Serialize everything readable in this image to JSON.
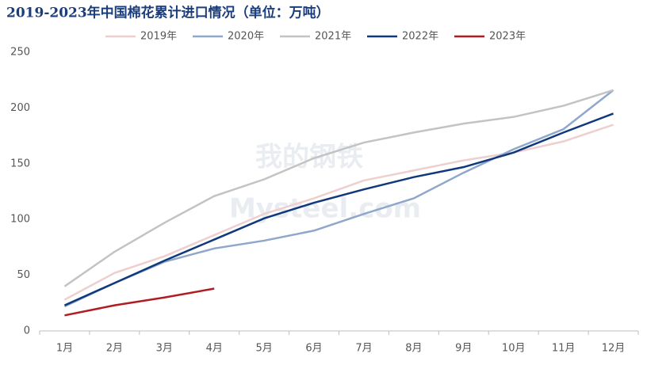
{
  "chart_data": {
    "type": "line",
    "title": "2019-2023年中国棉花累计进口情况（单位：万吨）",
    "watermark": [
      "我的钢铁",
      "Mysteel.com"
    ],
    "categories": [
      "1月",
      "2月",
      "3月",
      "4月",
      "5月",
      "6月",
      "7月",
      "8月",
      "9月",
      "10月",
      "11月",
      "12月"
    ],
    "series": [
      {
        "name": "2019年",
        "color": "#edcfd0",
        "values": [
          28,
          52,
          67,
          86,
          105,
          119,
          135,
          144,
          153,
          160,
          170,
          185
        ]
      },
      {
        "name": "2020年",
        "color": "#8ea7cb",
        "values": [
          22,
          43,
          62,
          74,
          81,
          90,
          105,
          119,
          142,
          163,
          181,
          216
        ]
      },
      {
        "name": "2021年",
        "color": "#c3c3c3",
        "values": [
          40,
          71,
          97,
          121,
          136,
          155,
          169,
          178,
          186,
          192,
          202,
          216
        ]
      },
      {
        "name": "2022年",
        "color": "#0f397b",
        "values": [
          23,
          43,
          63,
          82,
          101,
          115,
          127,
          138,
          147,
          160,
          178,
          195
        ]
      },
      {
        "name": "2023年",
        "color": "#b01c22",
        "values": [
          14,
          23,
          30,
          38,
          null,
          null,
          null,
          null,
          null,
          null,
          null,
          null
        ]
      }
    ],
    "ylim": [
      0,
      250
    ],
    "yticks": [
      0,
      50,
      100,
      150,
      200,
      250
    ]
  }
}
